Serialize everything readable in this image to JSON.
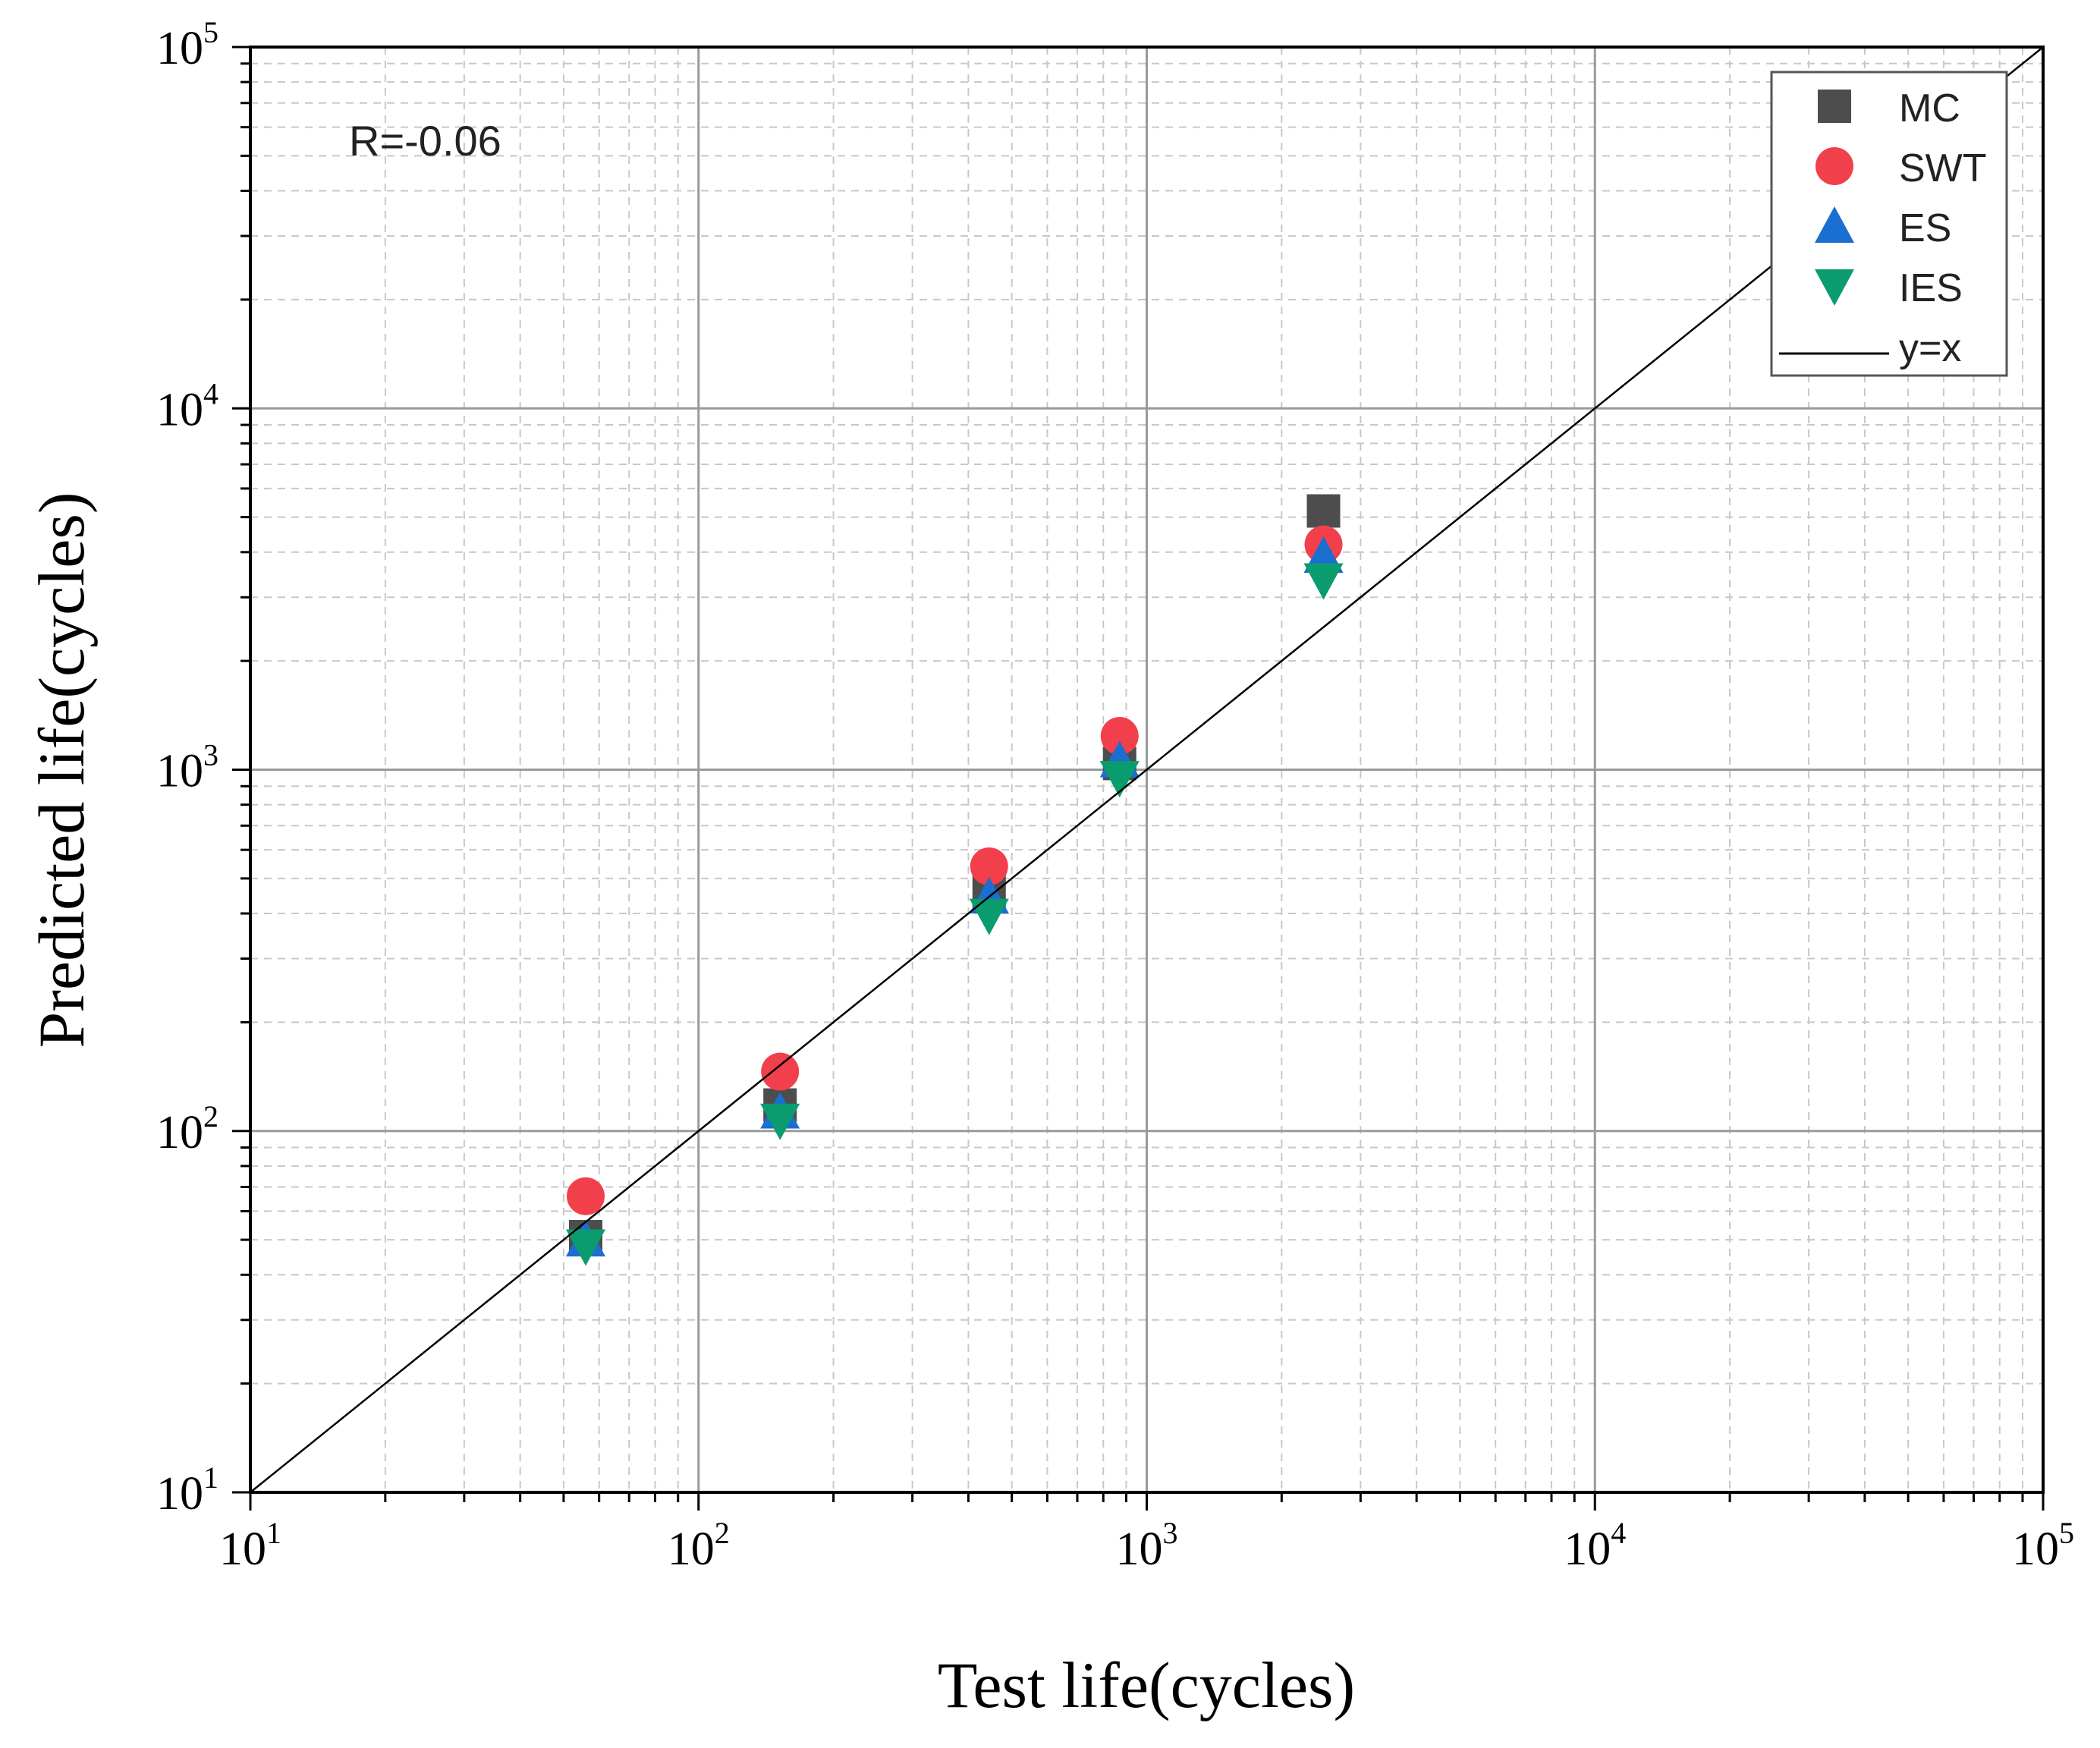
{
  "chart_data": {
    "type": "scatter",
    "title": "",
    "xlabel": "Test life(cycles)",
    "ylabel": "Predicted life(cycles)",
    "xscale": "log",
    "yscale": "log",
    "xlim": [
      10,
      100000
    ],
    "ylim": [
      10,
      100000
    ],
    "grid": true,
    "legend_position": "top-right",
    "annotation": "R=-0.06",
    "ticks": [
      {
        "base": "10",
        "exp": "1",
        "value": 10
      },
      {
        "base": "10",
        "exp": "2",
        "value": 100
      },
      {
        "base": "10",
        "exp": "3",
        "value": 1000
      },
      {
        "base": "10",
        "exp": "4",
        "value": 10000
      },
      {
        "base": "10",
        "exp": "5",
        "value": 100000
      }
    ],
    "series": [
      {
        "name": "MC",
        "marker": "square",
        "color": "#4d4d4d",
        "points": [
          [
            56,
            51
          ],
          [
            152,
            118
          ],
          [
            445,
            462
          ],
          [
            870,
            1040
          ],
          [
            2480,
            5200
          ]
        ]
      },
      {
        "name": "SWT",
        "marker": "circle",
        "color": "#f23f4c",
        "points": [
          [
            56,
            66
          ],
          [
            152,
            146
          ],
          [
            445,
            540
          ],
          [
            870,
            1240
          ],
          [
            2480,
            4200
          ]
        ]
      },
      {
        "name": "ES",
        "marker": "triangle-up",
        "color": "#1a6fd1",
        "points": [
          [
            56,
            50
          ],
          [
            152,
            113
          ],
          [
            445,
            445
          ],
          [
            870,
            1060
          ],
          [
            2480,
            3900
          ]
        ]
      },
      {
        "name": "IES",
        "marker": "triangle-down",
        "color": "#0a9c6f",
        "points": [
          [
            56,
            48
          ],
          [
            152,
            107
          ],
          [
            445,
            395
          ],
          [
            870,
            950
          ],
          [
            2480,
            3350
          ]
        ]
      },
      {
        "name": "y=x",
        "marker": "line",
        "color": "#000000",
        "points": [
          [
            10,
            10
          ],
          [
            100000,
            100000
          ]
        ]
      }
    ]
  }
}
